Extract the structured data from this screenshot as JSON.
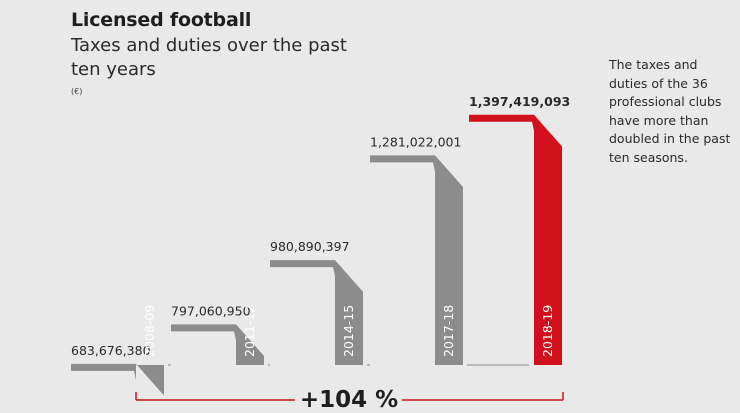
{
  "header": {
    "title": "Licensed football",
    "subtitle": "Taxes and duties over the past ten years",
    "unit": "(€)"
  },
  "note": "The taxes and duties of the 36 professional clubs have more than doubled in the past ten seasons.",
  "colors": {
    "background": "#e9e9e9",
    "bar": "#8c8c8c",
    "highlight": "#d0111b",
    "text": "#222222"
  },
  "chart_data": {
    "type": "bar",
    "categories": [
      "2008-09",
      "2011-12",
      "2014-15",
      "2017-18",
      "2018-19"
    ],
    "values": [
      683676380,
      797060950,
      980890397,
      1281022001,
      1397419093
    ],
    "value_labels": [
      "683,676,380",
      "797,060,950",
      "980,890,397",
      "1,281,022,001",
      "1,397,419,093"
    ],
    "highlight_index": 4,
    "change_label": "+104 %"
  }
}
